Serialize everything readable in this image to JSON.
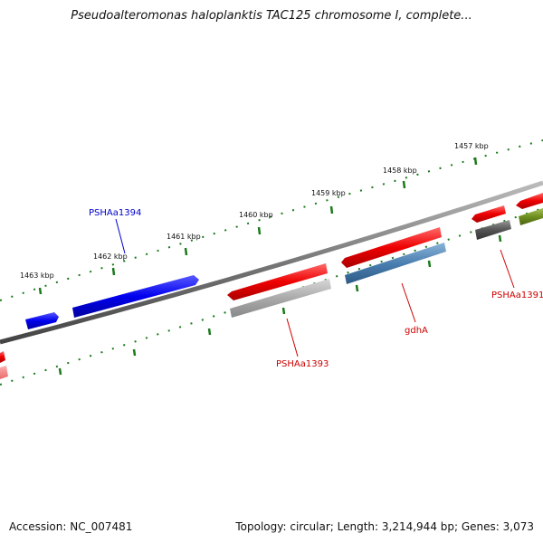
{
  "title": "Pseudoalteromonas haloplanktis TAC125 chromosome I, complete...",
  "footer": {
    "accession": "Accession: NC_007481",
    "summary": "Topology: circular; Length: 3,214,944 bp; Genes: 3,073"
  },
  "scale_labels": [
    "1457 kbp",
    "1458 kbp",
    "1459 kbp",
    "1460 kbp",
    "1461 kbp",
    "1462 kbp",
    "1463 kbp"
  ],
  "gene_labels": [
    {
      "text": "PSHAa1394",
      "color": "#0000cc"
    },
    {
      "text": "PSHAa1393",
      "color": "#cc0000"
    },
    {
      "text": "gdhA",
      "color": "#cc0000"
    },
    {
      "text": "PSHAa1391",
      "color": "#cc0000"
    }
  ],
  "colors": {
    "backbone": "#777777",
    "forward_cds": "#ee0000",
    "reverse_cds": "#0000ee",
    "tick": "#1a7a1a",
    "gray_feature": "#aaaaaa",
    "steel_feature": "#4a7fb0",
    "olive_feature": "#6e8f1e",
    "dark_feature": "#555555"
  }
}
